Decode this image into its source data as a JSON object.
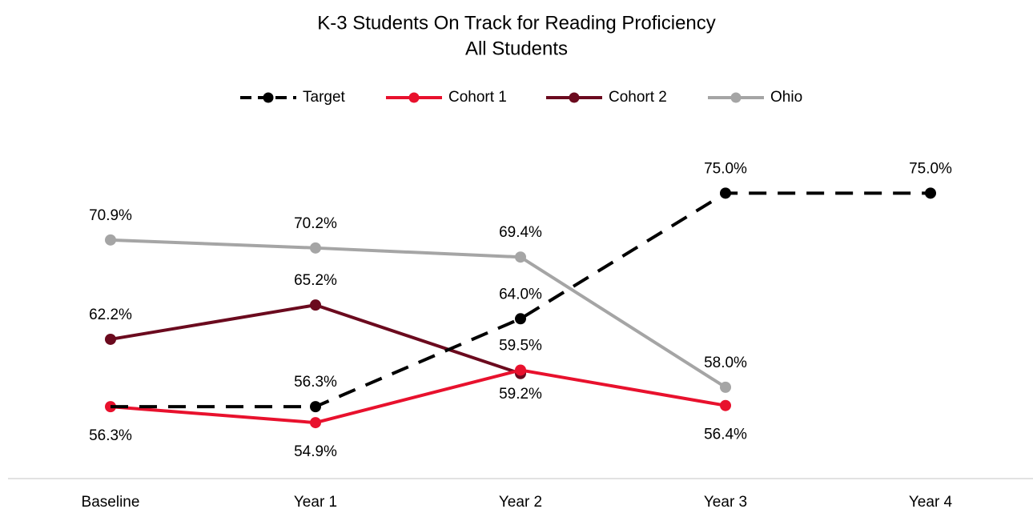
{
  "chart_data": {
    "type": "line",
    "title": "K-3 Students On Track for Reading Proficiency",
    "subtitle": "All Students",
    "categories": [
      "Baseline",
      "Year 1",
      "Year 2",
      "Year 3",
      "Year 4"
    ],
    "ylim": [
      50,
      80
    ],
    "series": [
      {
        "name": "Target",
        "color": "#000000",
        "dashed": true,
        "values": [
          56.3,
          56.3,
          64.0,
          75.0,
          75.0
        ],
        "value_labels": [
          null,
          "56.3%",
          "64.0%",
          "75.0%",
          "75.0%"
        ]
      },
      {
        "name": "Cohort 1",
        "color": "#e8112d",
        "values": [
          56.3,
          54.9,
          59.5,
          56.4,
          null
        ],
        "value_labels": [
          "56.3%",
          "54.9%",
          "59.5%",
          "56.4%",
          null
        ]
      },
      {
        "name": "Cohort 2",
        "color": "#6b0a1e",
        "values": [
          62.2,
          65.2,
          59.2,
          null,
          null
        ],
        "value_labels": [
          "62.2%",
          "65.2%",
          "59.2%",
          null,
          null
        ]
      },
      {
        "name": "Ohio",
        "color": "#a5a5a5",
        "values": [
          70.9,
          70.2,
          69.4,
          58.0,
          null
        ],
        "value_labels": [
          "70.9%",
          "70.2%",
          "69.4%",
          "58.0%",
          null
        ]
      }
    ]
  }
}
